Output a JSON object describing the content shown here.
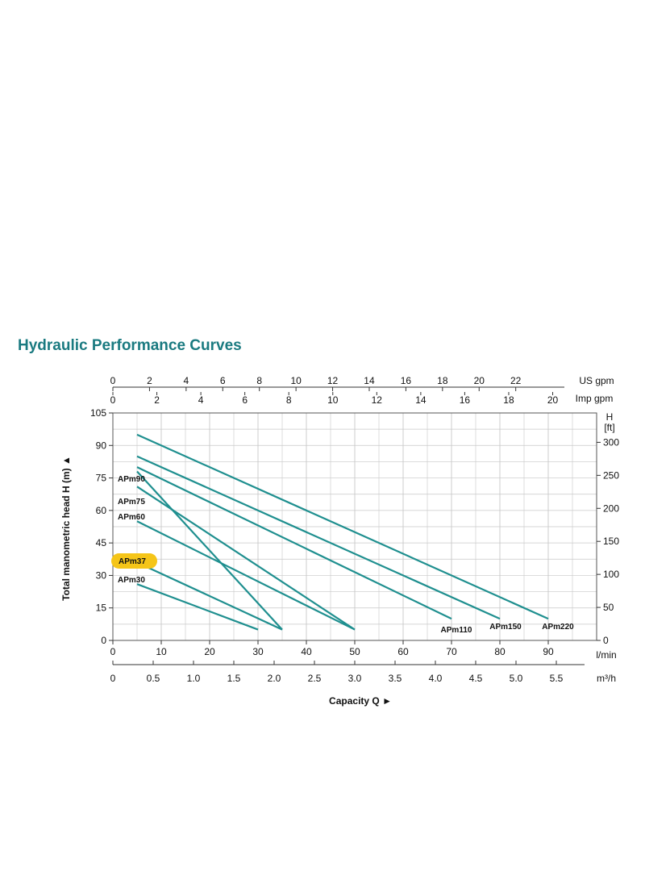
{
  "title": "Hydraulic Performance Curves",
  "colors": {
    "title": "#1a7a80",
    "curve": "#1f8f8f",
    "grid": "#c8c8c8",
    "frame": "#555555",
    "highlight": "#f5c518"
  },
  "chart_data": {
    "type": "line",
    "xlabel": "Capacity Q",
    "ylabel": "Total manometric head H (m)",
    "x_unit": "l/min",
    "xlim": [
      0,
      100
    ],
    "ylim": [
      0,
      105
    ],
    "x_ticks": [
      0,
      10,
      20,
      30,
      40,
      50,
      60,
      70,
      80,
      90
    ],
    "y_ticks": [
      0,
      15,
      30,
      45,
      60,
      75,
      90,
      105
    ],
    "secondary_axes": {
      "m3h": {
        "unit": "m³/h",
        "ticks": [
          "0",
          "0.5",
          "1.0",
          "1.5",
          "2.0",
          "2.5",
          "3.0",
          "3.5",
          "4.0",
          "4.5",
          "5.0",
          "5.5"
        ]
      },
      "us_gpm": {
        "unit": "US gpm",
        "ticks": [
          "0",
          "2",
          "4",
          "6",
          "8",
          "10",
          "12",
          "14",
          "16",
          "18",
          "20",
          "22"
        ]
      },
      "imp_gpm": {
        "unit": "Imp gpm",
        "ticks": [
          "0",
          "2",
          "4",
          "6",
          "8",
          "10",
          "12",
          "14",
          "16",
          "18",
          "20"
        ]
      },
      "ft": {
        "unit_line1": "H",
        "unit_line2": "[ft]",
        "ticks": [
          "0",
          "50",
          "100",
          "150",
          "200",
          "250",
          "300"
        ]
      }
    },
    "grid": true,
    "series": [
      {
        "name": "APm30",
        "x": [
          5,
          30
        ],
        "y": [
          26,
          5
        ]
      },
      {
        "name": "APm37",
        "x": [
          5,
          35
        ],
        "y": [
          36,
          5
        ],
        "highlighted": true
      },
      {
        "name": "APm60",
        "x": [
          5,
          50
        ],
        "y": [
          55,
          5
        ]
      },
      {
        "name": "APm75",
        "x": [
          5,
          50
        ],
        "y": [
          71,
          5
        ]
      },
      {
        "name": "APm90",
        "x": [
          5,
          35
        ],
        "y": [
          78,
          5
        ]
      },
      {
        "name": "APm110",
        "x": [
          5,
          70
        ],
        "y": [
          80,
          10
        ]
      },
      {
        "name": "APm150",
        "x": [
          5,
          80
        ],
        "y": [
          85,
          10
        ]
      },
      {
        "name": "APm220",
        "x": [
          5,
          90
        ],
        "y": [
          95,
          10
        ]
      }
    ]
  }
}
